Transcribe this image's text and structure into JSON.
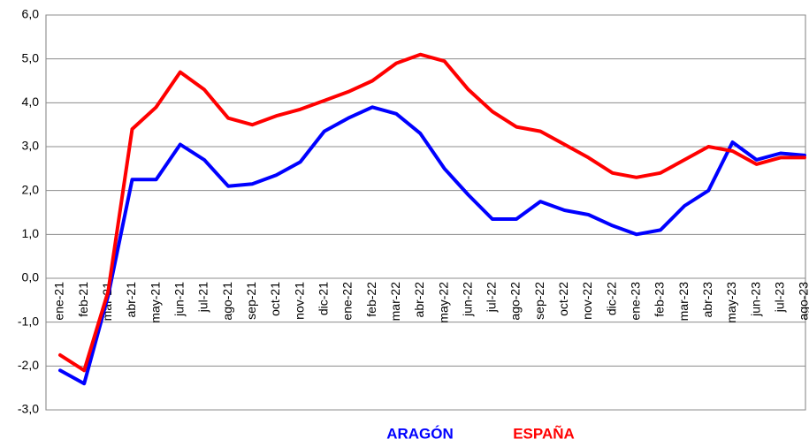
{
  "chart_data": {
    "type": "line",
    "categories": [
      "ene-21",
      "feb-21",
      "mar-21",
      "abr-21",
      "may-21",
      "jun-21",
      "jul-21",
      "ago-21",
      "sep-21",
      "oct-21",
      "nov-21",
      "dic-21",
      "ene-22",
      "feb-22",
      "mar-22",
      "abr-22",
      "may-22",
      "jun-22",
      "jul-22",
      "ago-22",
      "sep-22",
      "oct-22",
      "nov-22",
      "dic-22",
      "ene-23",
      "feb-23",
      "mar-23",
      "abr-23",
      "may-23",
      "jun-23",
      "jul-23",
      "ago-23"
    ],
    "series": [
      {
        "name": "ARAGÓN",
        "color": "#0000ff",
        "values": [
          -2.1,
          -2.4,
          -0.4,
          2.25,
          2.25,
          3.05,
          2.7,
          2.1,
          2.15,
          2.35,
          2.65,
          3.35,
          3.65,
          3.9,
          3.75,
          3.3,
          2.5,
          1.9,
          1.35,
          1.35,
          1.75,
          1.55,
          1.45,
          1.2,
          1.0,
          1.1,
          1.65,
          2.0,
          3.1,
          2.7,
          2.85,
          2.8
        ]
      },
      {
        "name": "ESPAÑA",
        "color": "#ff0000",
        "values": [
          -1.75,
          -2.1,
          -0.3,
          3.4,
          3.9,
          4.7,
          4.3,
          3.65,
          3.5,
          3.7,
          3.85,
          4.05,
          4.25,
          4.5,
          4.9,
          5.1,
          4.95,
          4.3,
          3.8,
          3.45,
          3.35,
          3.05,
          2.75,
          2.4,
          2.3,
          2.4,
          2.7,
          3.0,
          2.9,
          2.6,
          2.75,
          2.75
        ]
      }
    ],
    "ylim": [
      -3,
      6
    ],
    "yticks": [
      {
        "value": -3,
        "label": "-3,0"
      },
      {
        "value": -2,
        "label": "-2,0"
      },
      {
        "value": -1,
        "label": "-1,0"
      },
      {
        "value": 0,
        "label": "0,0"
      },
      {
        "value": 1,
        "label": "1,0"
      },
      {
        "value": 2,
        "label": "2,0"
      },
      {
        "value": 3,
        "label": "3,0"
      },
      {
        "value": 4,
        "label": "4,0"
      },
      {
        "value": 5,
        "label": "5,0"
      },
      {
        "value": 6,
        "label": "6,0"
      }
    ],
    "grid": true,
    "legend": "bottom"
  }
}
